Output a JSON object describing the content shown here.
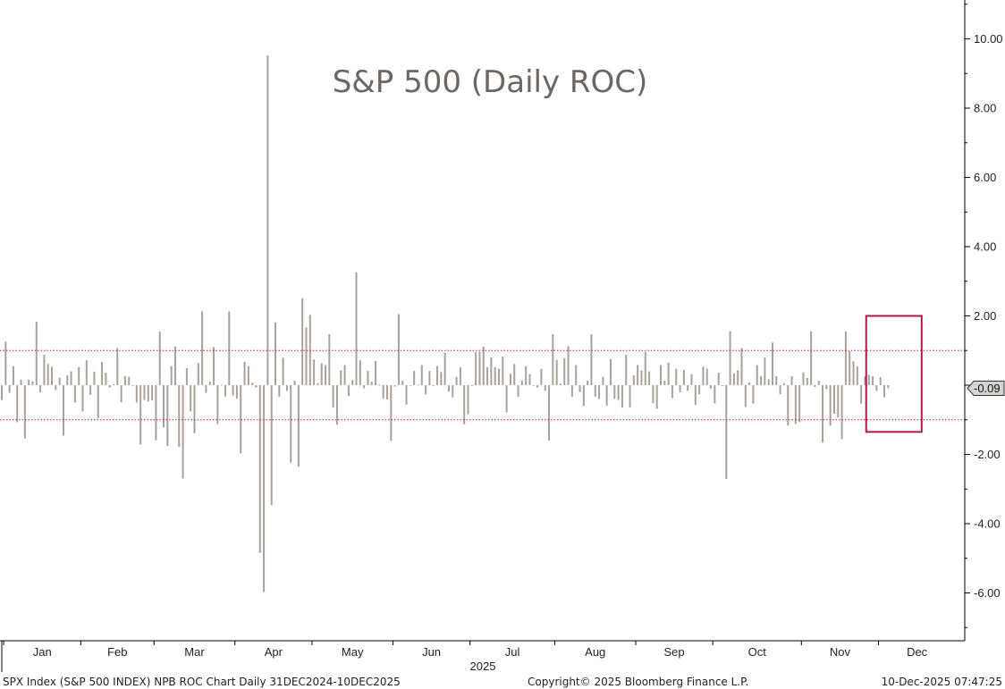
{
  "chart_data": {
    "type": "bar",
    "title": "S&P 500 (Daily ROC)",
    "xlabel": "2025",
    "ylabel": "",
    "ylim": [
      -7.2,
      11
    ],
    "yticks": [
      -6,
      -4,
      -2,
      2,
      4,
      6,
      8,
      10
    ],
    "ytick_labels": [
      "-6.00",
      "-4.00",
      "-2.00",
      "2.00",
      "4.00",
      "6.00",
      "8.00",
      "10.00"
    ],
    "months": [
      "Jan",
      "Feb",
      "Mar",
      "Apr",
      "May",
      "Jun",
      "Jul",
      "Aug",
      "Sep",
      "Oct",
      "Nov",
      "Dec"
    ],
    "month_start_index": [
      1,
      21,
      40,
      61,
      81,
      102,
      122,
      144,
      165,
      185,
      208,
      228
    ],
    "year": "2025",
    "band_lines": [
      1,
      -1
    ],
    "last_value": -0.09,
    "last_value_label": "-0.09",
    "highlight_range": [
      225,
      238
    ],
    "dates_start": "2024-12-31",
    "dates_end": "2025-12-10",
    "values": [
      -0.43,
      1.26,
      -0.22,
      0.55,
      -1.07,
      0.16,
      -1.54,
      0.16,
      0.11,
      1.83,
      -0.21,
      0.88,
      0.61,
      0.53,
      -0.14,
      0.21,
      -1.46,
      0.29,
      0.4,
      -0.5,
      0.52,
      -0.76,
      0.72,
      -0.28,
      0.39,
      -0.95,
      0.67,
      0.36,
      -0.07,
      0.03,
      1.07,
      -0.49,
      0.26,
      0.24,
      -0.01,
      -0.5,
      -1.71,
      -0.43,
      -0.47,
      -0.44,
      -1.59,
      1.55,
      -1.22,
      -1.76,
      0.55,
      1.12,
      -1.78,
      -2.7,
      0.49,
      -0.76,
      -1.39,
      0.64,
      2.13,
      -0.22,
      0.1,
      1.1,
      -1.12,
      0.01,
      -0.33,
      2.13,
      -0.3,
      -0.39,
      -1.97,
      0.67,
      0.55,
      0.07,
      -0.07,
      -4.84,
      -5.97,
      9.52,
      -3.46,
      1.81,
      -0.33,
      0.79,
      -0.17,
      -2.24,
      0.13,
      -2.36,
      2.51,
      1.67,
      2.03,
      0.74,
      0.06,
      0.63,
      0.58,
      1.47,
      -0.64,
      -1.14,
      0.43,
      0.58,
      -0.31,
      0.15,
      3.26,
      0.72,
      -0.09,
      0.41,
      0.1,
      0.7,
      0.01,
      -0.39,
      -0.41,
      -1.61,
      -0.04,
      2.05,
      0.13,
      -0.56,
      -0.01,
      0.41,
      0.01,
      0.58,
      -0.27,
      0.41,
      -0.01,
      0.55,
      0.38,
      0.94,
      -0.18,
      -0.35,
      0.24,
      0.52,
      -1.13,
      -0.84,
      0.0,
      0.95,
      0.96,
      1.11,
      0.52,
      0.8,
      0.52,
      0.47,
      0.83,
      -0.79,
      0.33,
      0.61,
      -0.33,
      0.14,
      0.55,
      0.32,
      0.0,
      -0.07,
      0.47,
      -0.16,
      -1.6,
      1.47,
      0.73,
      0.05,
      0.78,
      1.13,
      -0.33,
      0.58,
      -0.2,
      -0.6,
      0.13,
      1.47,
      -0.33,
      -0.4,
      0.24,
      -0.59,
      0.75,
      -0.4,
      -0.43,
      -0.65,
      0.88,
      -0.64,
      0.28,
      0.58,
      0.43,
      0.96,
      0.4,
      -0.52,
      -0.68,
      0.58,
      0.13,
      0.65,
      -0.37,
      0.47,
      -0.21,
      0.44,
      -0.16,
      0.32,
      -0.57,
      -0.26,
      0.54,
      0.48,
      -0.1,
      -0.53,
      0.36,
      -0.03,
      -2.71,
      1.56,
      0.34,
      0.43,
      1.07,
      -0.63,
      0.08,
      -0.53,
      0.58,
      0.26,
      0.8,
      0.17,
      1.23,
      0.26,
      -0.26,
      0.06,
      -1.17,
      0.26,
      -1.12,
      -1.07,
      0.37,
      0.21,
      1.56,
      -0.05,
      0.13,
      -1.66,
      -0.12,
      -1.17,
      -0.83,
      -0.94,
      -1.56,
      1.55,
      0.98,
      0.69,
      0.54,
      -0.53,
      0.25,
      0.3,
      0.26,
      -0.16,
      0.23,
      -0.35,
      -0.09
    ]
  },
  "footer": {
    "left": "SPX Index (S&P 500 INDEX) NPB ROC Chart Daily 31DEC2024-10DEC2025",
    "center": "Copyright© 2025 Bloomberg Finance L.P.",
    "right": "10-Dec-2025 07:47:25"
  },
  "colors": {
    "bar": "#a9a19a",
    "band": "#c41e3a",
    "highlight_box": "#b5174a",
    "title": "#6e6660",
    "axis": "#000000",
    "last_value_bg": "#d6d3d0"
  }
}
